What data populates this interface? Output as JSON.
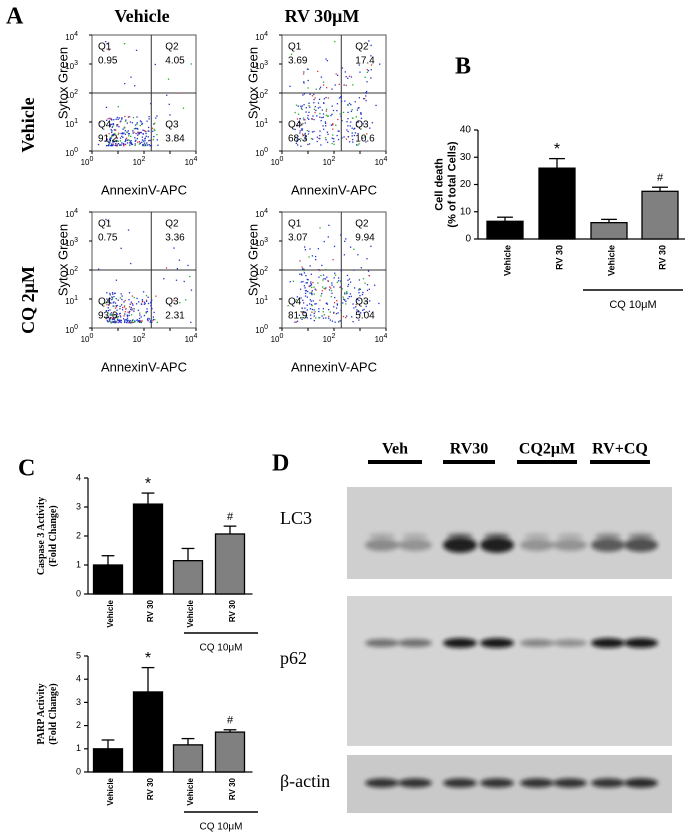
{
  "panel_labels": [
    "A",
    "B",
    "C",
    "D"
  ],
  "flow": {
    "column_labels": [
      "Vehicle",
      "RV 30μM"
    ],
    "row_labels": [
      "Vehicle",
      "CQ 2μM"
    ],
    "x_label": "AnnexinV-APC",
    "y_label": "Sytox Green",
    "quadrant_names": [
      "Q1",
      "Q2",
      "Q3",
      "Q4"
    ],
    "tick_base": "10",
    "tick_exponents": [
      0,
      1,
      2,
      3,
      4
    ],
    "plots": [
      {
        "quadrants": [
          0.95,
          4.05,
          3.84,
          91.2
        ]
      },
      {
        "quadrants": [
          3.69,
          17.4,
          10.6,
          68.3
        ]
      },
      {
        "quadrants": [
          0.75,
          3.36,
          2.31,
          93.6
        ]
      },
      {
        "quadrants": [
          3.07,
          9.94,
          5.04,
          81.9
        ]
      }
    ]
  },
  "chart_data": [
    {
      "type": "bar",
      "y_label": [
        "Cell death",
        "(% of total Cells)"
      ],
      "categories": [
        "Vehicle",
        "RV 30",
        "Vehicle",
        "RV 30"
      ],
      "values": [
        6.5,
        26,
        6,
        17.5
      ],
      "errors": [
        1.5,
        3.5,
        1.2,
        1.5
      ],
      "colors": [
        "#000000",
        "#000000",
        "#808080",
        "#808080"
      ],
      "markers": [
        null,
        "*",
        null,
        "#"
      ],
      "group_label": "CQ 10μM",
      "ylim": [
        0,
        40
      ],
      "yticks": [
        0,
        10,
        20,
        30,
        40
      ]
    },
    {
      "type": "bar",
      "y_label": [
        "Caspase 3 Activity",
        "(Fold Change)"
      ],
      "categories": [
        "Vehicle",
        "RV 30",
        "Vehicle",
        "RV 30"
      ],
      "values": [
        1.0,
        3.1,
        1.15,
        2.07
      ],
      "errors": [
        0.32,
        0.38,
        0.42,
        0.27
      ],
      "colors": [
        "#000000",
        "#000000",
        "#808080",
        "#808080"
      ],
      "markers": [
        null,
        "*",
        null,
        "#"
      ],
      "group_label": "CQ 10μM",
      "ylim": [
        0,
        4
      ],
      "yticks": [
        0,
        1,
        2,
        3,
        4
      ]
    },
    {
      "type": "bar",
      "y_label": [
        "PARP Activity",
        "(Fold Change)"
      ],
      "categories": [
        "Vehicle",
        "RV 30",
        "Vehicle",
        "RV 30"
      ],
      "values": [
        1.0,
        3.45,
        1.17,
        1.72
      ],
      "errors": [
        0.38,
        1.05,
        0.27,
        0.1
      ],
      "colors": [
        "#000000",
        "#000000",
        "#808080",
        "#808080"
      ],
      "markers": [
        null,
        "*",
        null,
        "#"
      ],
      "group_label": "CQ 10μM",
      "ylim": [
        0,
        5
      ],
      "yticks": [
        0,
        1,
        2,
        3,
        4,
        5
      ]
    }
  ],
  "blot": {
    "groups": [
      "Veh",
      "RV30",
      "CQ2μM",
      "RV+CQ"
    ],
    "bands": [
      "LC3",
      "p62",
      "β-actin"
    ]
  }
}
